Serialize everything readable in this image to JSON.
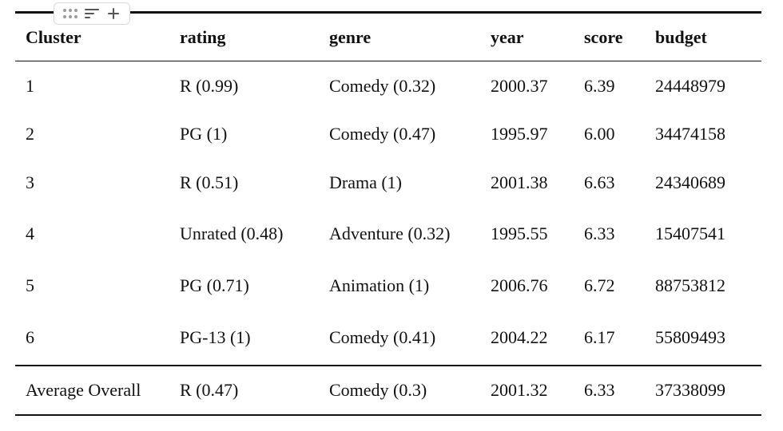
{
  "table": {
    "columns": [
      "Cluster",
      "rating",
      "genre",
      "year",
      "score",
      "budget"
    ],
    "rows": [
      [
        "1",
        "R (0.99)",
        "Comedy (0.32)",
        "2000.37",
        "6.39",
        "24448979"
      ],
      [
        "2",
        "PG (1)",
        "Comedy (0.47)",
        "1995.97",
        "6.00",
        "34474158"
      ],
      [
        "3",
        "R (0.51)",
        "Drama (1)",
        "2001.38",
        "6.63",
        "24340689"
      ],
      [
        "4",
        "Unrated (0.48)",
        "Adventure (0.32)",
        "1995.55",
        "6.33",
        "15407541"
      ],
      [
        "5",
        "PG (0.71)",
        "Animation (1)",
        "2006.76",
        "6.72",
        "88753812"
      ],
      [
        "6",
        "PG-13 (1)",
        "Comedy (0.41)",
        "2004.22",
        "6.17",
        "55809493"
      ]
    ],
    "summary_row": [
      "Average Overall",
      "R (0.47)",
      "Comedy (0.3)",
      "2001.32",
      "6.33",
      "37338099"
    ]
  },
  "toolbar": {
    "icons": [
      "drag-handle-icon",
      "sort-lines-icon",
      "add-icon"
    ]
  }
}
